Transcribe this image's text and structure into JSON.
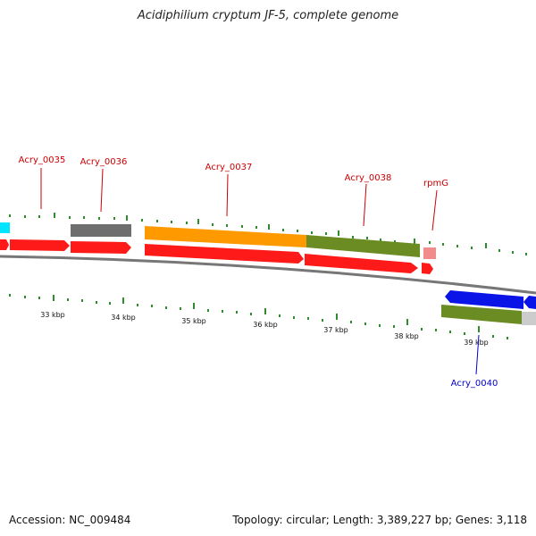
{
  "title": "Acidiphilium cryptum JF-5, complete genome",
  "footer": {
    "accession": "Accession: NC_009484",
    "topology": "Topology: circular; Length: 3,389,227 bp; Genes: 3,118"
  },
  "ticks": [
    "33 kbp",
    "34 kbp",
    "35 kbp",
    "36 kbp",
    "37 kbp",
    "38 kbp",
    "39 kbp"
  ],
  "gene_labels": [
    {
      "text": "Acry_0035",
      "color": "#cc0000"
    },
    {
      "text": "Acry_0036",
      "color": "#cc0000"
    },
    {
      "text": "Acry_0037",
      "color": "#cc0000"
    },
    {
      "text": "Acry_0038",
      "color": "#cc0000"
    },
    {
      "text": "rpmG",
      "color": "#cc0000"
    },
    {
      "text": "Acry_0040",
      "color": "#0000cc"
    }
  ],
  "colors": {
    "cds_forward": "#ff1a1a",
    "cds_reverse": "#0a14e6",
    "rna_gray": "#6e6e6e",
    "orange": "#ff9900",
    "olive": "#6b8c23",
    "pink": "#f28c8c",
    "cyan": "#00e5ff",
    "light_gray": "#cccccc",
    "backbone": "#777777",
    "tick_green": "#2e8b2e"
  }
}
